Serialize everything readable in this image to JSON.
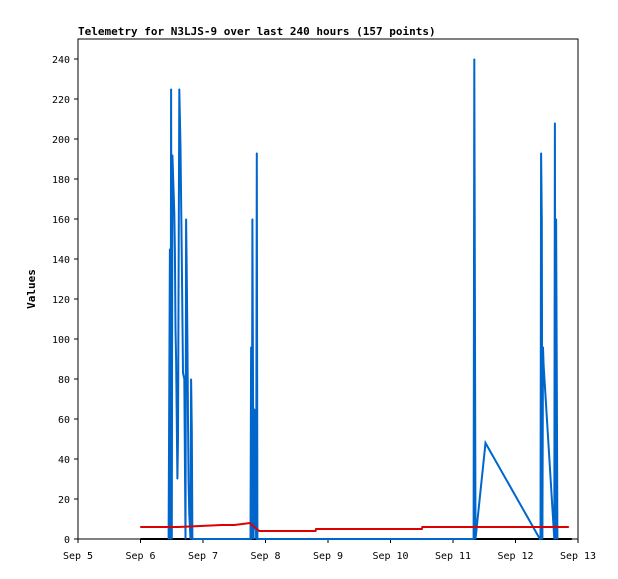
{
  "chart_data": {
    "type": "line",
    "title": "Telemetry for N3LJS-9 over last 240 hours (157 points)",
    "xlabel": "",
    "ylabel": "Values",
    "x_ticks": [
      "Sep 5",
      "Sep 6",
      "Sep 7",
      "Sep 8",
      "Sep 9",
      "Sep 10",
      "Sep 11",
      "Sep 12",
      "Sep 13"
    ],
    "xlim": [
      0,
      8
    ],
    "ylim": [
      0,
      250
    ],
    "y_ticks": [
      0,
      20,
      40,
      60,
      80,
      100,
      120,
      140,
      160,
      180,
      200,
      220,
      240
    ],
    "grid": false,
    "series": [
      {
        "color": "#0066cc",
        "x": [
          1.45,
          1.47,
          1.48,
          1.49,
          1.5,
          1.51,
          1.52,
          1.54,
          1.55,
          1.56,
          1.57,
          1.59,
          1.6,
          1.62,
          1.64,
          1.66,
          1.68,
          1.7,
          1.72,
          1.73,
          1.74,
          1.75,
          1.76,
          1.77,
          1.78,
          1.8,
          1.81,
          1.82,
          1.83,
          2.52,
          2.53,
          2.54,
          2.76,
          2.77,
          2.78,
          2.79,
          2.81,
          2.82,
          2.83,
          2.84,
          2.85,
          2.86,
          2.87,
          2.88,
          2.89,
          2.9,
          6.33,
          6.34,
          6.35,
          6.36,
          6.52,
          7.39,
          7.4,
          7.41,
          7.42,
          7.43,
          7.44,
          7.45,
          7.62,
          7.63,
          7.64,
          7.65,
          7.66,
          7.67
        ],
        "y": [
          0,
          145,
          0,
          225,
          0,
          192,
          183,
          163,
          144,
          105,
          90,
          30,
          50,
          225,
          196,
          140,
          83,
          80,
          0,
          160,
          130,
          100,
          60,
          28,
          12,
          0,
          80,
          55,
          0,
          0,
          0,
          0,
          0,
          96,
          0,
          160,
          0,
          65,
          5,
          50,
          0,
          193,
          0,
          0,
          0,
          0,
          0,
          240,
          120,
          0,
          48,
          0,
          0,
          193,
          160,
          0,
          96,
          87,
          0,
          208,
          0,
          160,
          80,
          0
        ]
      },
      {
        "color": "#dd0000",
        "x": [
          1.0,
          1.6,
          1.61,
          2.3,
          2.5,
          2.75,
          2.82,
          2.9,
          3.8,
          3.81,
          5.5,
          5.51,
          6.5,
          6.51,
          7.85
        ],
        "y": [
          6,
          6,
          6,
          7,
          7,
          8,
          6,
          4,
          4,
          5,
          5,
          6,
          6,
          6,
          6
        ]
      }
    ],
    "baseline": {
      "color": "#000000",
      "x": [
        1.0,
        7.9
      ],
      "y": [
        0,
        0
      ]
    }
  }
}
